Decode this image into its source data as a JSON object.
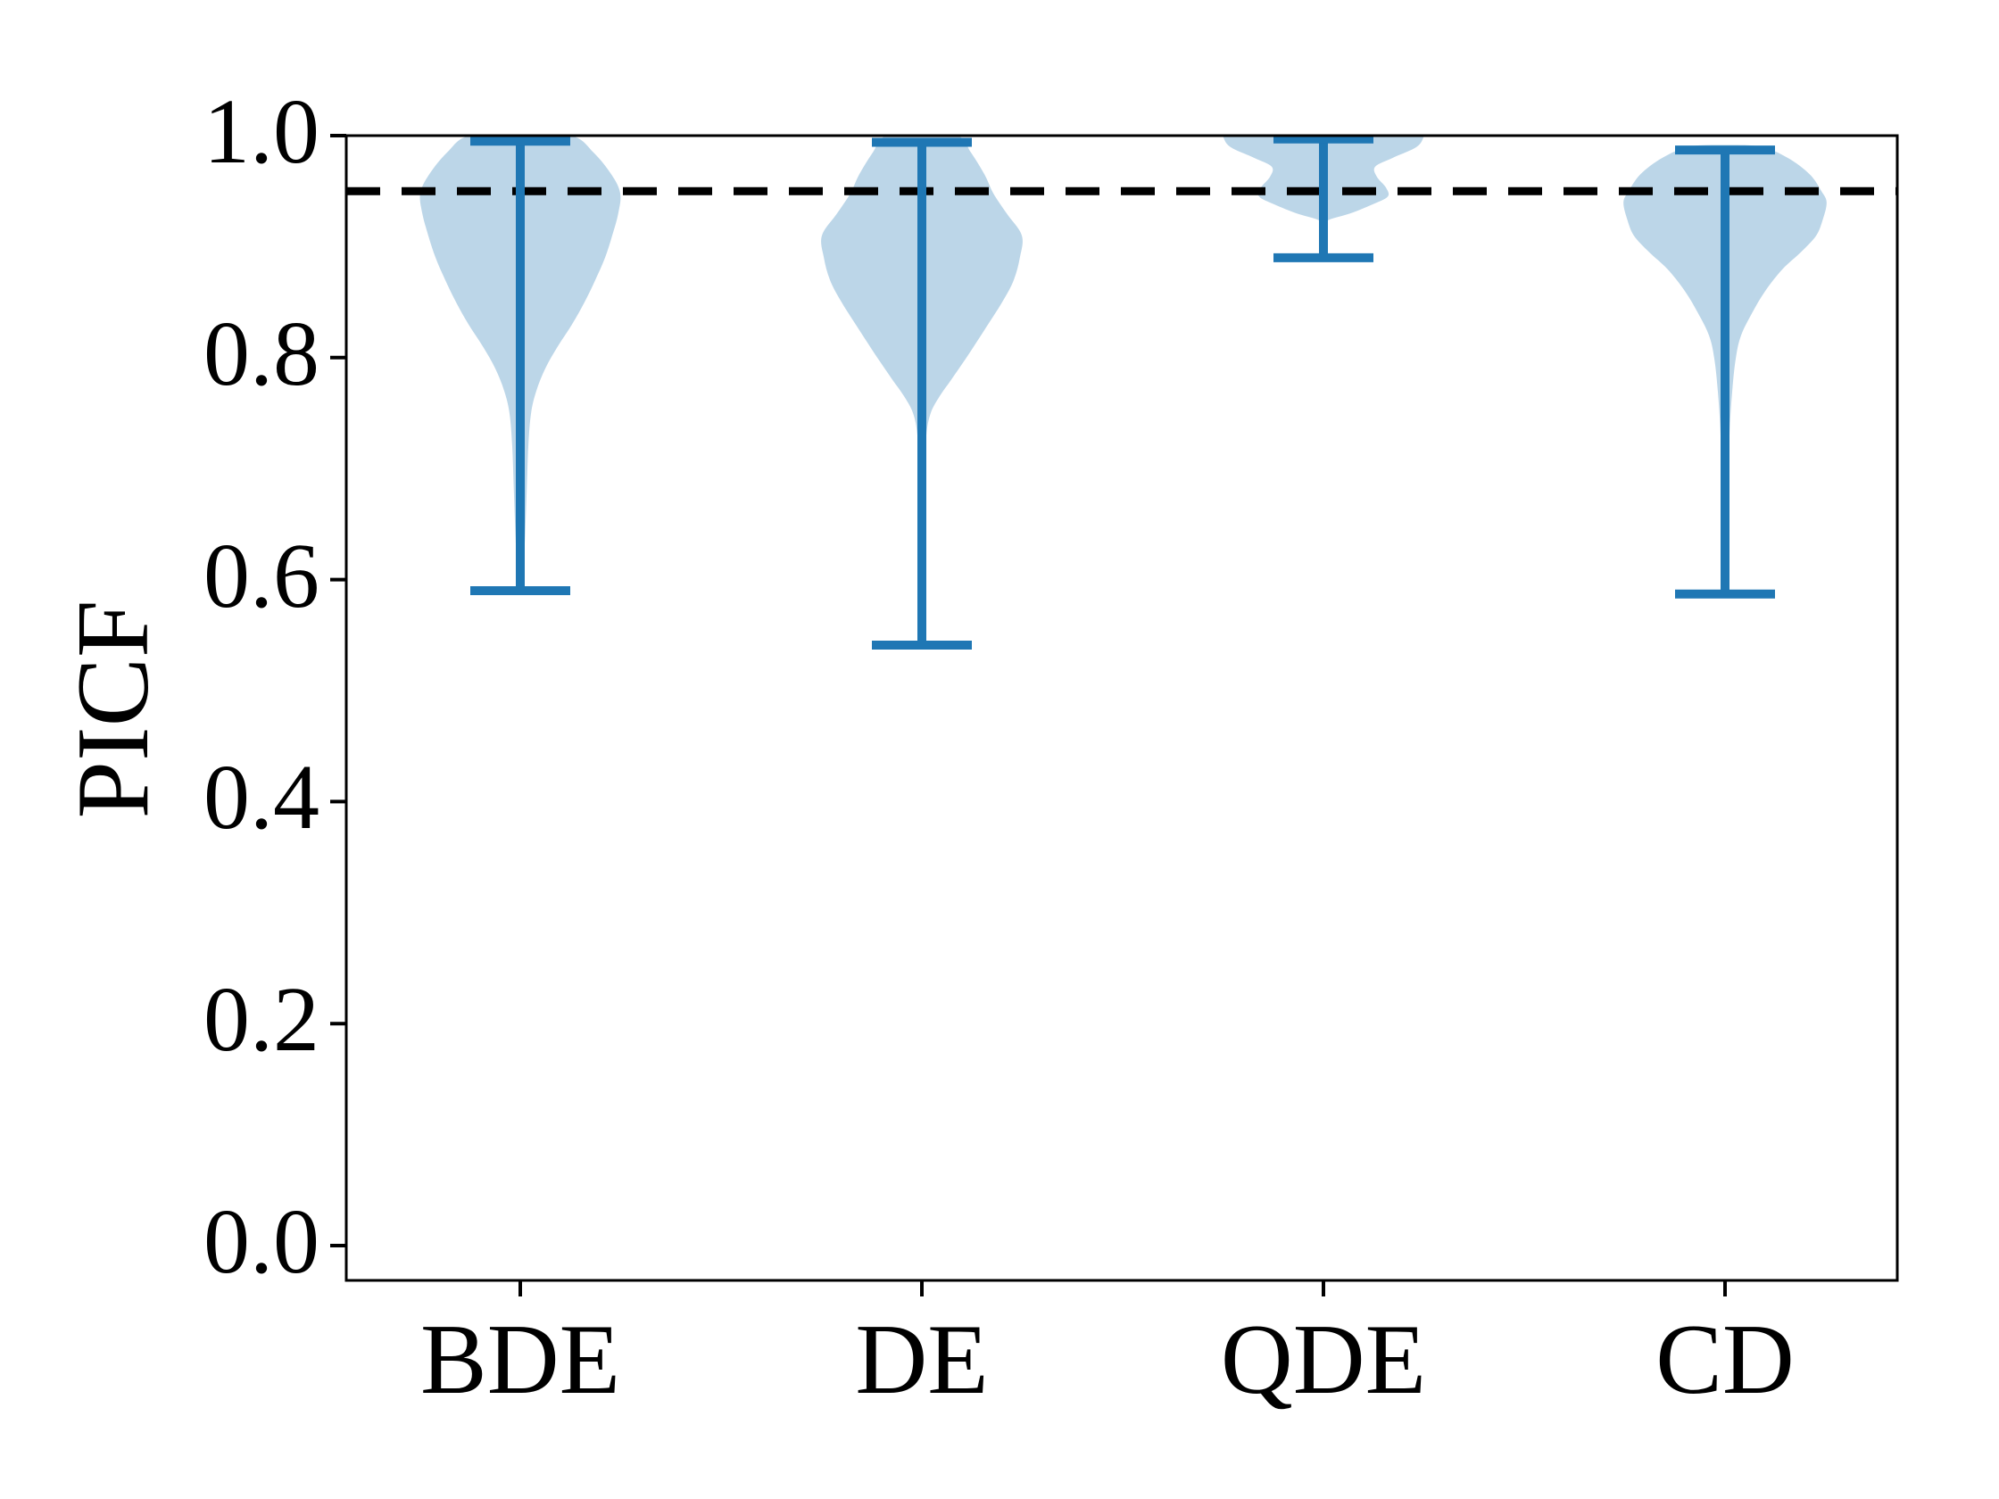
{
  "figure": {
    "background": "#ffffff",
    "colors": {
      "violin_fill": "#bcd6e8",
      "whisker_line": "#1f77b4",
      "reference_line": "#000000",
      "axis": "#000000",
      "text": "#000000"
    }
  },
  "chart_data": {
    "type": "violin",
    "title": "",
    "xlabel": "",
    "ylabel": "PICF",
    "categories": [
      "BDE",
      "DE",
      "QDE",
      "CD"
    ],
    "ylim": [
      -0.031,
      1.0
    ],
    "yticks": [
      0.0,
      0.2,
      0.4,
      0.6,
      0.8,
      1.0
    ],
    "ytick_labels": [
      "0.0",
      "0.2",
      "0.4",
      "0.6",
      "0.8",
      "1.0"
    ],
    "grid": false,
    "legend": null,
    "reference_line": {
      "y": 0.95,
      "style": "dashed",
      "color": "#000000"
    },
    "series": [
      {
        "name": "BDE",
        "whisker_min": 0.59,
        "whisker_max": 0.995,
        "profile": [
          [
            1.0,
            0.127
          ],
          [
            0.985,
            0.182
          ],
          [
            0.965,
            0.227
          ],
          [
            0.948,
            0.249
          ],
          [
            0.93,
            0.244
          ],
          [
            0.91,
            0.229
          ],
          [
            0.89,
            0.211
          ],
          [
            0.87,
            0.187
          ],
          [
            0.85,
            0.16
          ],
          [
            0.83,
            0.129
          ],
          [
            0.81,
            0.093
          ],
          [
            0.79,
            0.062
          ],
          [
            0.77,
            0.04
          ],
          [
            0.75,
            0.027
          ],
          [
            0.72,
            0.02
          ],
          [
            0.68,
            0.016
          ],
          [
            0.64,
            0.012
          ],
          [
            0.6,
            0.007
          ]
        ]
      },
      {
        "name": "DE",
        "whisker_min": 0.541,
        "whisker_max": 0.994,
        "profile": [
          [
            1.0,
            0.089
          ],
          [
            0.985,
            0.122
          ],
          [
            0.965,
            0.156
          ],
          [
            0.948,
            0.178
          ],
          [
            0.93,
            0.211
          ],
          [
            0.91,
            0.249
          ],
          [
            0.89,
            0.244
          ],
          [
            0.87,
            0.229
          ],
          [
            0.85,
            0.2
          ],
          [
            0.825,
            0.156
          ],
          [
            0.8,
            0.111
          ],
          [
            0.78,
            0.073
          ],
          [
            0.765,
            0.044
          ],
          [
            0.75,
            0.022
          ],
          [
            0.73,
            0.011
          ],
          [
            0.7,
            0.009
          ],
          [
            0.65,
            0.007
          ],
          [
            0.6,
            0.005
          ],
          [
            0.56,
            0.004
          ]
        ]
      },
      {
        "name": "QDE",
        "whisker_min": 0.89,
        "whisker_max": 0.997,
        "profile": [
          [
            1.004,
            0.256
          ],
          [
            1.0,
            0.251
          ],
          [
            0.99,
            0.233
          ],
          [
            0.98,
            0.173
          ],
          [
            0.972,
            0.129
          ],
          [
            0.963,
            0.133
          ],
          [
            0.953,
            0.156
          ],
          [
            0.945,
            0.16
          ],
          [
            0.938,
            0.122
          ],
          [
            0.93,
            0.067
          ],
          [
            0.924,
            0.013
          ]
        ]
      },
      {
        "name": "CD",
        "whisker_min": 0.587,
        "whisker_max": 0.987,
        "profile": [
          [
            0.99,
            0.089
          ],
          [
            0.98,
            0.156
          ],
          [
            0.965,
            0.211
          ],
          [
            0.95,
            0.24
          ],
          [
            0.94,
            0.253
          ],
          [
            0.925,
            0.244
          ],
          [
            0.91,
            0.227
          ],
          [
            0.895,
            0.189
          ],
          [
            0.88,
            0.144
          ],
          [
            0.86,
            0.1
          ],
          [
            0.84,
            0.067
          ],
          [
            0.82,
            0.04
          ],
          [
            0.8,
            0.027
          ],
          [
            0.77,
            0.018
          ],
          [
            0.73,
            0.011
          ],
          [
            0.68,
            0.009
          ],
          [
            0.63,
            0.007
          ],
          [
            0.595,
            0.004
          ]
        ]
      }
    ]
  }
}
